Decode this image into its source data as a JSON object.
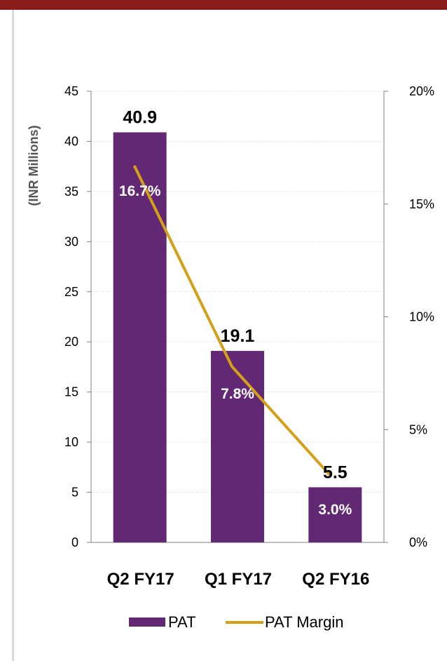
{
  "chart_data": {
    "type": "bar",
    "categories": [
      "Q2 FY17",
      "Q1 FY17",
      "Q2 FY16"
    ],
    "ylabel": "(INR Millions)",
    "ylim": [
      0,
      45
    ],
    "y_ticks": [
      0,
      5,
      10,
      15,
      20,
      25,
      30,
      35,
      40,
      45
    ],
    "y2lim": [
      0,
      20
    ],
    "y2_ticks": [
      "0%",
      "5%",
      "10%",
      "15%",
      "20%"
    ],
    "grid": true,
    "legend_position": "bottom",
    "series": [
      {
        "name": "PAT",
        "type": "bar",
        "color": "#632874",
        "values": [
          40.9,
          19.1,
          5.5
        ],
        "labels": [
          "40.9",
          "19.1",
          "5.5"
        ]
      },
      {
        "name": "PAT Margin",
        "type": "line",
        "axis": "right",
        "color": "#d4a017",
        "values": [
          16.7,
          7.8,
          3.0
        ],
        "labels": [
          "16.7%",
          "7.8%",
          "3.0%"
        ]
      }
    ]
  }
}
